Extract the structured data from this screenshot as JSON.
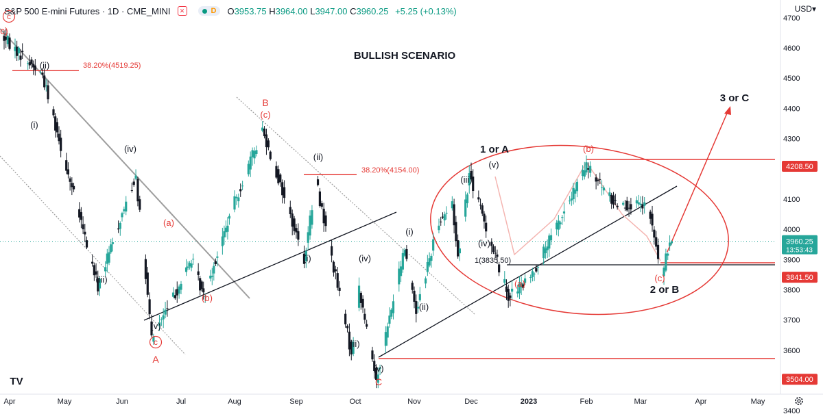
{
  "header": {
    "title": "S&P 500 E-mini Futures · 1D · CME_MINI",
    "eye_icon": "eye-off-icon",
    "data_badge": "D",
    "ohlc": {
      "open_label": "O",
      "open": "3953.75",
      "high_label": "H",
      "high": "3964.00",
      "low_label": "L",
      "low": "3947.00",
      "close_label": "C",
      "close": "3960.25",
      "change": "+5.25 (+0.13%)"
    },
    "currency": "USD",
    "currency_caret": "▾"
  },
  "colors": {
    "up": "#26a69a",
    "down": "#131722",
    "annotation": "#e53935",
    "gray_line": "#9e9e9e",
    "axis_text": "#131722"
  },
  "watermark": "TV",
  "settings_icon": "gear-icon",
  "chart_data": {
    "type": "candlestick",
    "title": "BULLISH SCENARIO",
    "ylim": [
      3380,
      4740
    ],
    "y_ticks": [
      3400,
      3500,
      3600,
      3700,
      3800,
      3900,
      4000,
      4100,
      4200,
      4300,
      4400,
      4500,
      4600,
      4700
    ],
    "x_ticks": [
      "Apr",
      "May",
      "Jun",
      "Jul",
      "Aug",
      "Sep",
      "Oct",
      "Nov",
      "Dec",
      "2023",
      "Feb",
      "Mar",
      "Apr",
      "May"
    ],
    "price_labels": [
      {
        "value": 4208.5,
        "text": "4208.50"
      },
      {
        "value": 3841.5,
        "text": "3841.50"
      },
      {
        "value": 3504.0,
        "text": "3504.00"
      }
    ],
    "last_price": {
      "value": 3960.25,
      "text": "3960.25",
      "countdown": "13:53:43"
    },
    "fib_levels": [
      {
        "text": "38.20%(4519.25)",
        "value": 4519.25
      },
      {
        "text": "38.20%(4154.00)",
        "value": 4154.0
      }
    ],
    "line_label": "1(3835.50)",
    "waves": {
      "black": [
        "(ii)",
        "(i)",
        "(iv)",
        "(iii)",
        "(v)",
        "(ii)",
        "(i)",
        "(iv)",
        "(iii)",
        "(v)",
        "(i)",
        "(ii)",
        "(iii)",
        "(v)",
        "(iv)"
      ],
      "red": [
        "(a)",
        "(b)",
        "(c)",
        "(a)",
        "(b)",
        "(c)"
      ],
      "circled": [
        "c",
        "c"
      ],
      "letters": [
        "c)",
        "A",
        "B",
        "C"
      ],
      "scenarios": [
        "1 or A",
        "2 or B",
        "3 or C"
      ]
    },
    "key_points": [
      {
        "date": "2022-03-29",
        "price": 4637
      },
      {
        "date": "2022-04-20",
        "price": 4510
      },
      {
        "date": "2022-05-20",
        "price": 3810
      },
      {
        "date": "2022-06-09",
        "price": 4180
      },
      {
        "date": "2022-06-17",
        "price": 3640
      },
      {
        "date": "2022-07-08",
        "price": 3900
      },
      {
        "date": "2022-07-15",
        "price": 3780
      },
      {
        "date": "2022-08-16",
        "price": 4330
      },
      {
        "date": "2022-09-06",
        "price": 3900
      },
      {
        "date": "2022-09-12",
        "price": 4160
      },
      {
        "date": "2022-09-30",
        "price": 3590
      },
      {
        "date": "2022-10-04",
        "price": 3800
      },
      {
        "date": "2022-10-13",
        "price": 3504
      },
      {
        "date": "2022-10-28",
        "price": 3940
      },
      {
        "date": "2022-11-03",
        "price": 3730
      },
      {
        "date": "2022-11-15",
        "price": 4030
      },
      {
        "date": "2022-11-22",
        "price": 4080
      },
      {
        "date": "2022-11-25",
        "price": 3910
      },
      {
        "date": "2022-12-01",
        "price": 4180
      },
      {
        "date": "2022-12-22",
        "price": 3780
      },
      {
        "date": "2023-01-02",
        "price": 3830
      },
      {
        "date": "2023-01-18",
        "price": 4020
      },
      {
        "date": "2023-02-02",
        "price": 4208
      },
      {
        "date": "2023-02-16",
        "price": 4090
      },
      {
        "date": "2023-03-06",
        "price": 4070
      },
      {
        "date": "2023-03-13",
        "price": 3841
      },
      {
        "date": "2023-03-17",
        "price": 3960
      }
    ]
  }
}
